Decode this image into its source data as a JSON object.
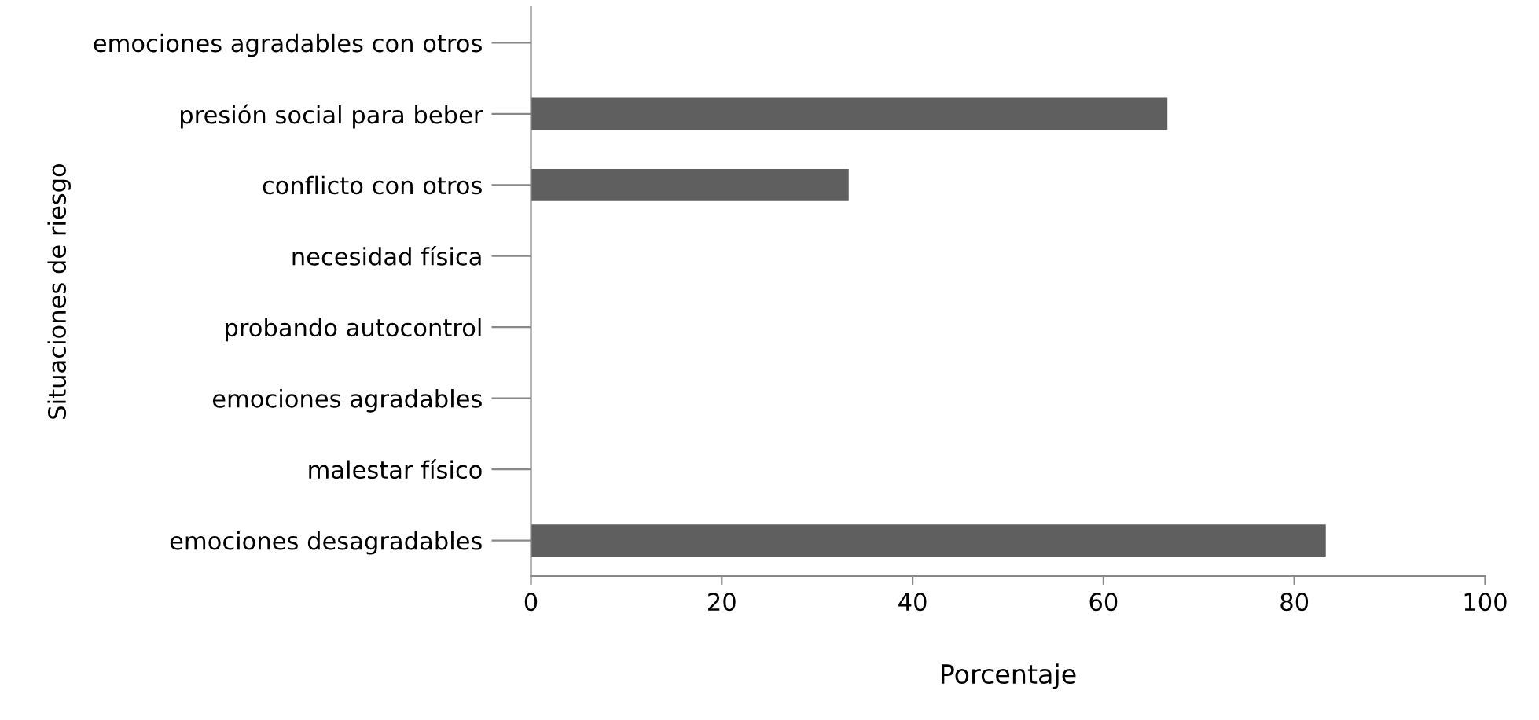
{
  "chart_data": {
    "type": "bar",
    "orientation": "horizontal",
    "xlabel": "Porcentaje",
    "ylabel": "Situaciones de riesgo",
    "categories": [
      "emociones agradables con otros",
      "presión social para beber",
      "conflicto con otros",
      "necesidad física",
      "probando autocontrol",
      "emociones agradables",
      "malestar físico",
      "emociones desagradables"
    ],
    "values": [
      0,
      66.7,
      33.3,
      0,
      0,
      0,
      0,
      83.3
    ],
    "color": "#5f5f5f",
    "xlim": [
      0,
      100
    ],
    "xticks": [
      0,
      20,
      40,
      60,
      80,
      100
    ],
    "grid": false,
    "legend": false
  }
}
